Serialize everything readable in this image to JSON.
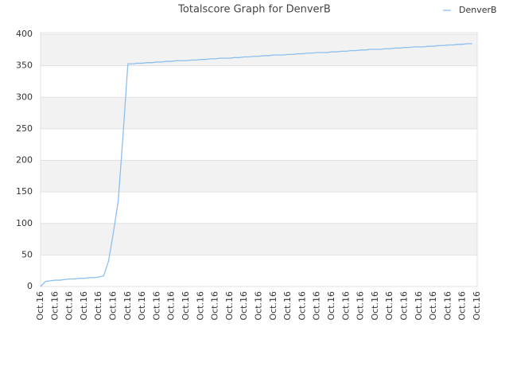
{
  "chart_data": {
    "type": "line",
    "title": "Totalscore Graph for DenverB",
    "categories": [
      "Oct.16",
      null,
      null,
      "Oct.16",
      null,
      null,
      "Oct.16",
      null,
      null,
      "Oct.16",
      null,
      null,
      "Oct.16",
      null,
      null,
      "Oct.16",
      null,
      null,
      "Oct.16",
      null,
      null,
      "Oct.16",
      null,
      null,
      "Oct.16",
      null,
      null,
      "Oct.16",
      null,
      null,
      "Oct.16",
      null,
      null,
      "Oct.16",
      null,
      null,
      "Oct.16",
      null,
      null,
      "Oct.16",
      null,
      null,
      "Oct.16",
      null,
      null,
      "Oct.16",
      null,
      null,
      "Oct.16",
      null,
      null,
      "Oct.16",
      null,
      null,
      "Oct.16",
      null,
      null,
      "Oct.16",
      null,
      null,
      "Oct.16",
      null,
      null,
      "Oct.16",
      null,
      null,
      "Oct.16",
      null,
      null,
      "Oct.16",
      null,
      null,
      "Oct.16",
      null,
      null,
      "Oct.16",
      null,
      null,
      "Oct.16",
      null,
      null,
      "Oct.16",
      null,
      null,
      "Oct.16",
      null,
      null,
      "Oct.16",
      null,
      null,
      "Oct.16"
    ],
    "series": [
      {
        "name": "DenverB",
        "color": "#8cbff0",
        "values": [
          0,
          8,
          9,
          10,
          10,
          11,
          12,
          12,
          13,
          13,
          14,
          14,
          15,
          17,
          40,
          85,
          135,
          240,
          353,
          353,
          354,
          354,
          355,
          355,
          356,
          356,
          357,
          357,
          358,
          358,
          358,
          359,
          359,
          360,
          360,
          361,
          361,
          362,
          362,
          362,
          363,
          363,
          364,
          364,
          365,
          365,
          366,
          366,
          367,
          367,
          367,
          368,
          368,
          369,
          369,
          370,
          370,
          371,
          371,
          371,
          372,
          372,
          373,
          373,
          374,
          374,
          375,
          375,
          376,
          376,
          376,
          377,
          377,
          378,
          378,
          379,
          379,
          380,
          380,
          380,
          381,
          381,
          382,
          382,
          383,
          383,
          384,
          384,
          385,
          385,
          null
        ]
      }
    ],
    "ylim": [
      0,
      400
    ],
    "yticks": [
      0,
      50,
      100,
      150,
      200,
      250,
      300,
      350,
      400
    ],
    "grid": true,
    "legend": "top-right"
  }
}
